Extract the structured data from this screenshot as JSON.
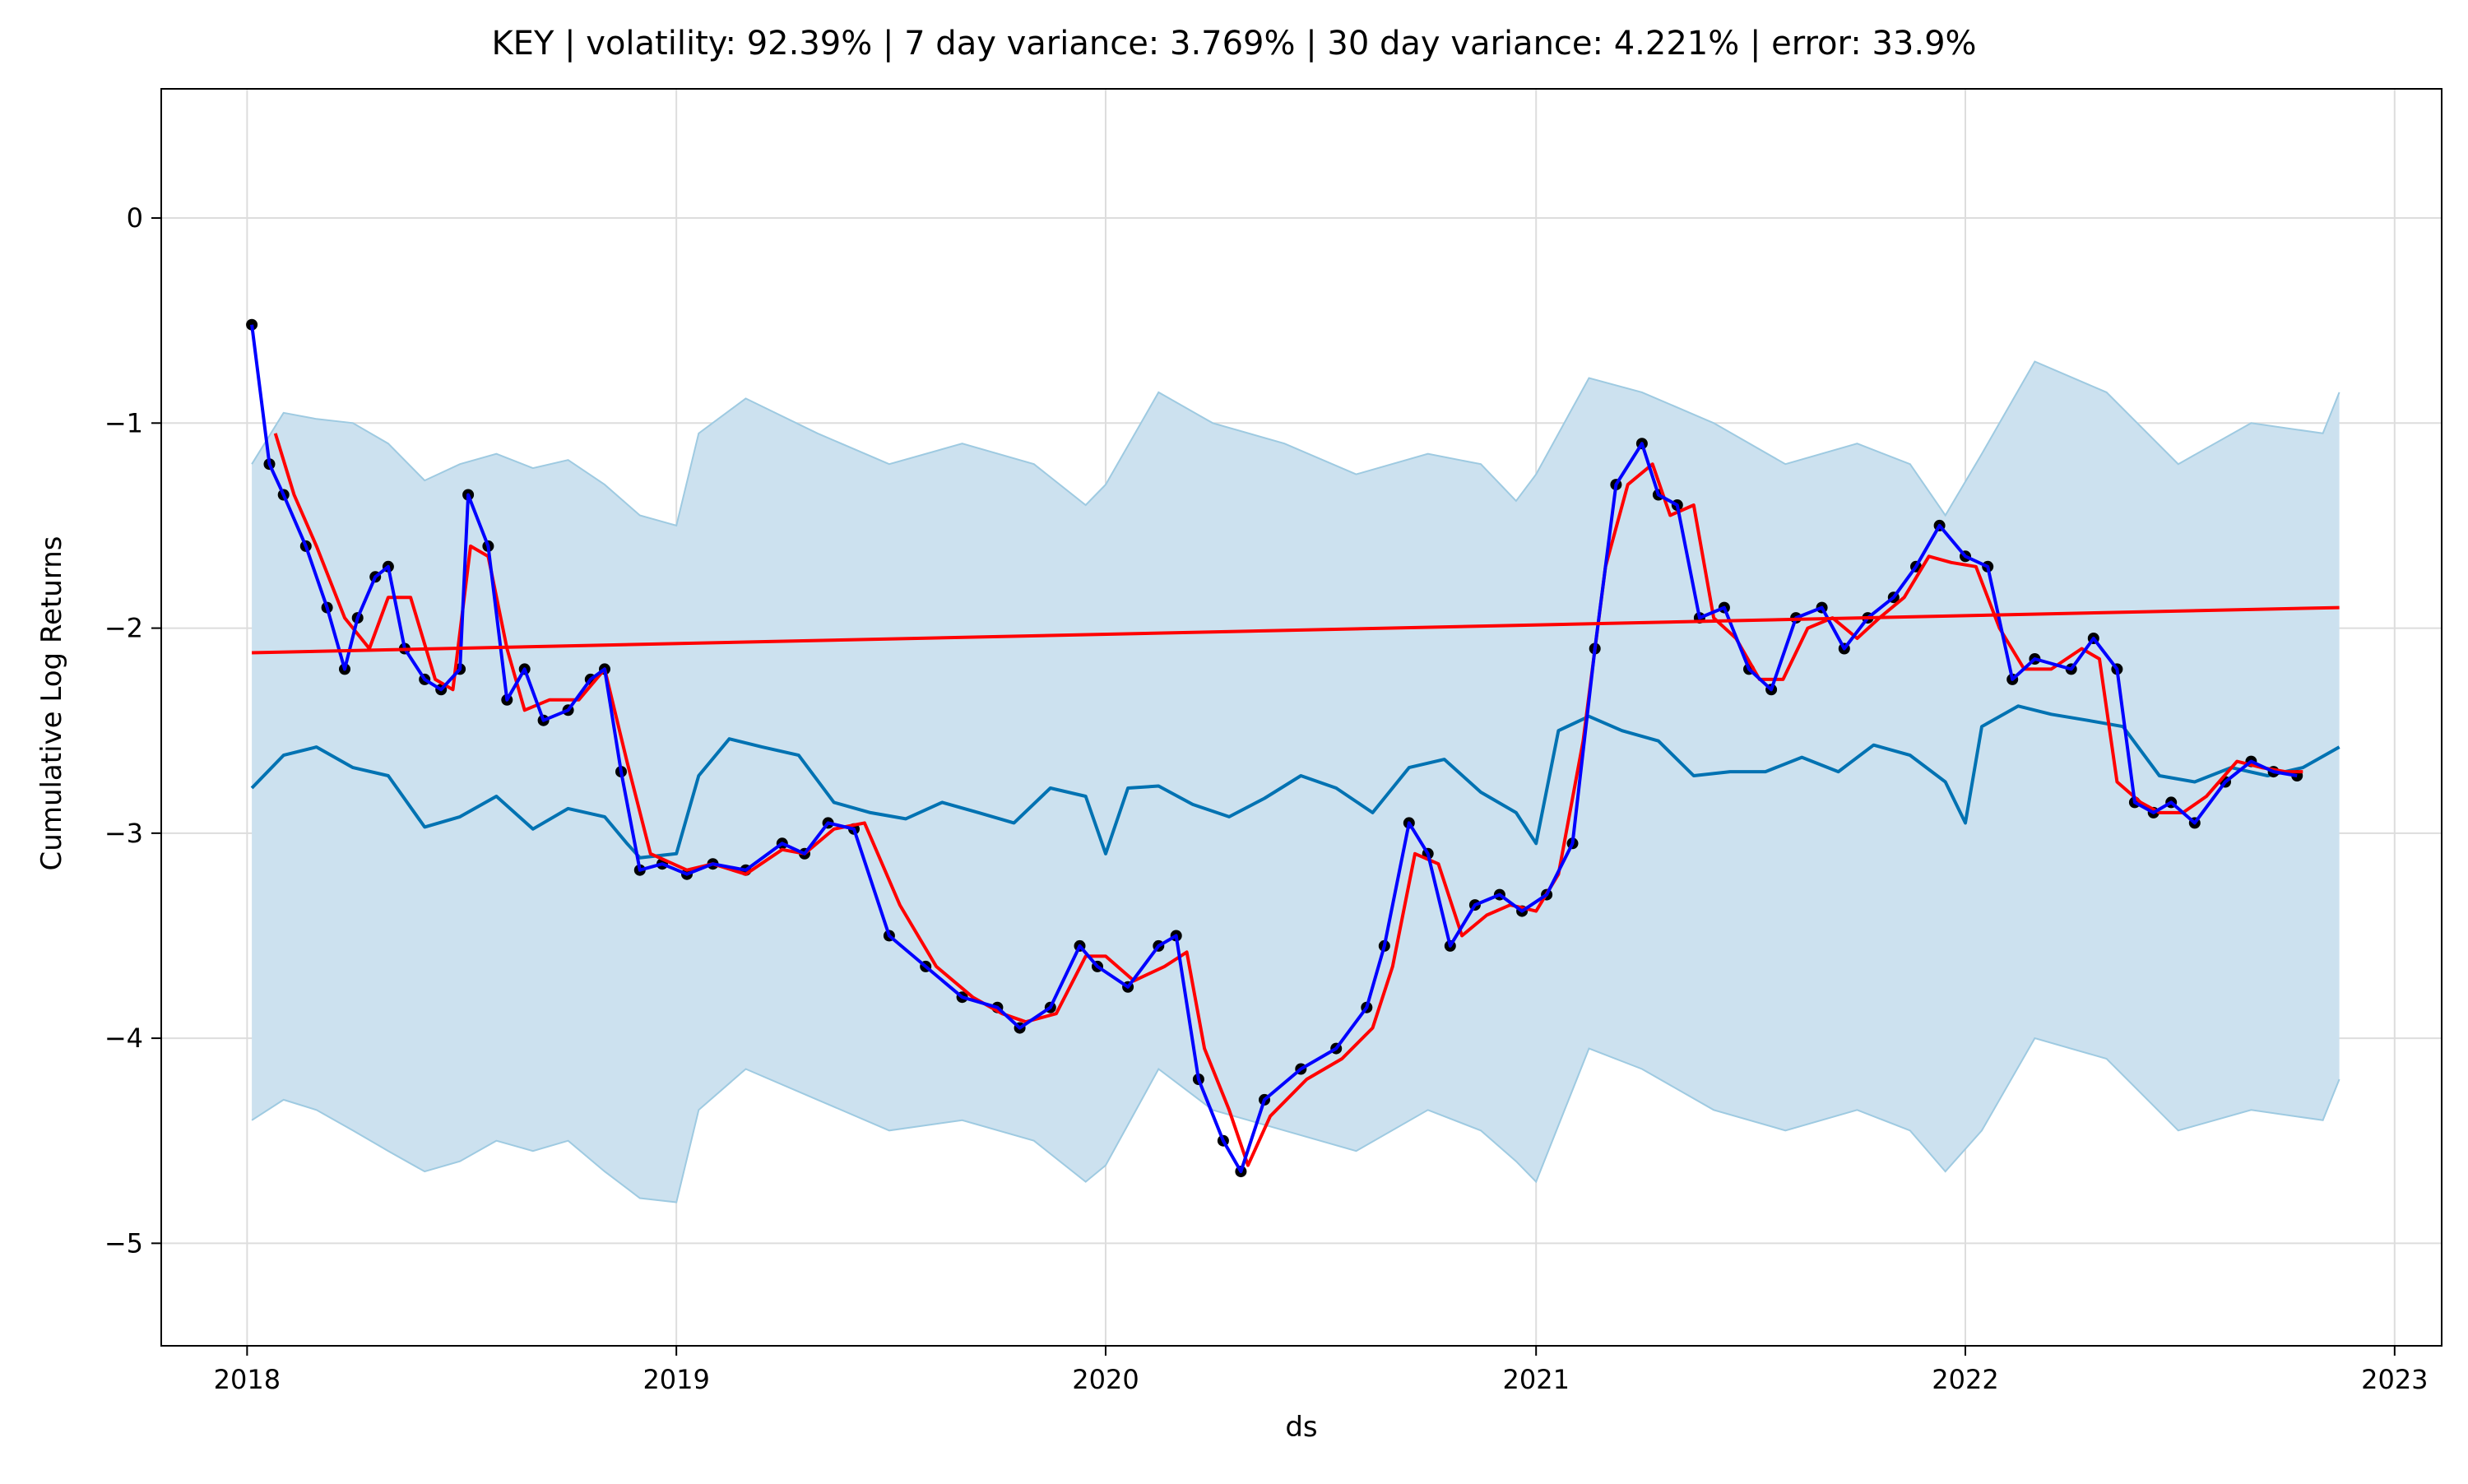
{
  "chart_data": {
    "type": "line",
    "title": "KEY | volatility: 92.39% | 7 day variance: 3.769% | 30 day variance: 4.221% | error: 33.9%",
    "xlabel": "ds",
    "ylabel": "Cumulative Log Returns",
    "xlim": [
      "2017-10-20",
      "2023-02-10"
    ],
    "ylim": [
      -5.5,
      0.63
    ],
    "xticks": [
      {
        "label": "2018",
        "date": "2018-01-01"
      },
      {
        "label": "2019",
        "date": "2019-01-01"
      },
      {
        "label": "2020",
        "date": "2020-01-01"
      },
      {
        "label": "2021",
        "date": "2021-01-01"
      },
      {
        "label": "2022",
        "date": "2022-01-01"
      },
      {
        "label": "2023",
        "date": "2023-01-01"
      }
    ],
    "yticks": [
      {
        "label": "0",
        "value": 0
      },
      {
        "label": "−1",
        "value": -1
      },
      {
        "label": "−2",
        "value": -2
      },
      {
        "label": "−3",
        "value": -3
      },
      {
        "label": "−4",
        "value": -4
      },
      {
        "label": "−5",
        "value": -5
      }
    ],
    "grid": true,
    "colors": {
      "observed": "#000000",
      "rolling_7": "#0000ff",
      "rolling_30": "#ff0000",
      "trend": "#ff0000",
      "forecast": "#0072b2",
      "band_fill": "#cce1ef",
      "band_edge": "#9ecae1",
      "grid": "#dddddd"
    },
    "series": [
      {
        "role": "forecast",
        "x": [
          "2018-01-05",
          "2018-02-01",
          "2018-03-01",
          "2018-04-01",
          "2018-05-01",
          "2018-06-01",
          "2018-07-01",
          "2018-08-01",
          "2018-09-01",
          "2018-10-01",
          "2018-11-01",
          "2018-11-20",
          "2018-12-01",
          "2019-01-01",
          "2019-01-20",
          "2019-02-15",
          "2019-03-15",
          "2019-04-15",
          "2019-05-15",
          "2019-06-15",
          "2019-07-15",
          "2019-08-15",
          "2019-09-15",
          "2019-10-15",
          "2019-11-15",
          "2019-12-15",
          "2020-01-01",
          "2020-01-20",
          "2020-02-15",
          "2020-03-15",
          "2020-04-15",
          "2020-05-15",
          "2020-06-15",
          "2020-07-15",
          "2020-08-15",
          "2020-09-15",
          "2020-10-15",
          "2020-11-15",
          "2020-12-15",
          "2021-01-01",
          "2021-01-20",
          "2021-02-15",
          "2021-03-15",
          "2021-04-15",
          "2021-05-15",
          "2021-06-15",
          "2021-07-15",
          "2021-08-15",
          "2021-09-15",
          "2021-10-15",
          "2021-11-15",
          "2021-12-15",
          "2022-01-01",
          "2022-01-15",
          "2022-02-15",
          "2022-03-15",
          "2022-04-15",
          "2022-05-15",
          "2022-06-15",
          "2022-07-15",
          "2022-08-15",
          "2022-09-15",
          "2022-10-15",
          "2022-11-15"
        ],
        "y": [
          -2.78,
          -2.62,
          -2.58,
          -2.68,
          -2.72,
          -2.97,
          -2.92,
          -2.82,
          -2.98,
          -2.88,
          -2.92,
          -3.05,
          -3.12,
          -3.1,
          -2.72,
          -2.54,
          -2.58,
          -2.62,
          -2.85,
          -2.9,
          -2.93,
          -2.85,
          -2.9,
          -2.95,
          -2.78,
          -2.82,
          -3.1,
          -2.78,
          -2.77,
          -2.86,
          -2.92,
          -2.83,
          -2.72,
          -2.78,
          -2.9,
          -2.68,
          -2.64,
          -2.8,
          -2.9,
          -3.05,
          -2.5,
          -2.43,
          -2.5,
          -2.55,
          -2.72,
          -2.7,
          -2.7,
          -2.63,
          -2.7,
          -2.57,
          -2.62,
          -2.75,
          -2.95,
          -2.48,
          -2.38,
          -2.42,
          -2.45,
          -2.48,
          -2.72,
          -2.75,
          -2.68,
          -2.72,
          -2.68,
          -2.58
        ]
      },
      {
        "role": "band_upper",
        "x": [
          "2018-01-05",
          "2018-02-01",
          "2018-03-01",
          "2018-04-01",
          "2018-05-01",
          "2018-06-01",
          "2018-07-01",
          "2018-08-01",
          "2018-09-01",
          "2018-10-01",
          "2018-11-01",
          "2018-12-01",
          "2019-01-01",
          "2019-01-20",
          "2019-03-01",
          "2019-05-01",
          "2019-07-01",
          "2019-09-01",
          "2019-11-01",
          "2019-12-15",
          "2020-01-01",
          "2020-02-15",
          "2020-04-01",
          "2020-06-01",
          "2020-08-01",
          "2020-10-01",
          "2020-11-15",
          "2020-12-15",
          "2021-01-01",
          "2021-02-15",
          "2021-04-01",
          "2021-06-01",
          "2021-08-01",
          "2021-10-01",
          "2021-11-15",
          "2021-12-15",
          "2022-01-15",
          "2022-03-01",
          "2022-05-01",
          "2022-07-01",
          "2022-09-01",
          "2022-11-01",
          "2022-11-15"
        ],
        "y": [
          -1.2,
          -0.95,
          -0.98,
          -1.0,
          -1.1,
          -1.28,
          -1.2,
          -1.15,
          -1.22,
          -1.18,
          -1.3,
          -1.45,
          -1.5,
          -1.05,
          -0.88,
          -1.05,
          -1.2,
          -1.1,
          -1.2,
          -1.4,
          -1.3,
          -0.85,
          -1.0,
          -1.1,
          -1.25,
          -1.15,
          -1.2,
          -1.38,
          -1.25,
          -0.78,
          -0.85,
          -1.0,
          -1.2,
          -1.1,
          -1.2,
          -1.45,
          -1.15,
          -0.7,
          -0.85,
          -1.2,
          -1.0,
          -1.05,
          -0.85
        ]
      },
      {
        "role": "band_lower",
        "x": [
          "2018-01-05",
          "2018-02-01",
          "2018-03-01",
          "2018-04-01",
          "2018-05-01",
          "2018-06-01",
          "2018-07-01",
          "2018-08-01",
          "2018-09-01",
          "2018-10-01",
          "2018-11-01",
          "2018-12-01",
          "2019-01-01",
          "2019-01-20",
          "2019-03-01",
          "2019-05-01",
          "2019-07-01",
          "2019-09-01",
          "2019-11-01",
          "2019-12-15",
          "2020-01-01",
          "2020-02-15",
          "2020-04-01",
          "2020-06-01",
          "2020-08-01",
          "2020-10-01",
          "2020-11-15",
          "2020-12-15",
          "2021-01-01",
          "2021-02-15",
          "2021-04-01",
          "2021-06-01",
          "2021-08-01",
          "2021-10-01",
          "2021-11-15",
          "2021-12-15",
          "2022-01-15",
          "2022-03-01",
          "2022-05-01",
          "2022-07-01",
          "2022-09-01",
          "2022-11-01",
          "2022-11-15"
        ],
        "y": [
          -4.4,
          -4.3,
          -4.35,
          -4.45,
          -4.55,
          -4.65,
          -4.6,
          -4.5,
          -4.55,
          -4.5,
          -4.65,
          -4.78,
          -4.8,
          -4.35,
          -4.15,
          -4.3,
          -4.45,
          -4.4,
          -4.5,
          -4.7,
          -4.62,
          -4.15,
          -4.35,
          -4.45,
          -4.55,
          -4.35,
          -4.45,
          -4.6,
          -4.7,
          -4.05,
          -4.15,
          -4.35,
          -4.45,
          -4.35,
          -4.45,
          -4.65,
          -4.45,
          -4.0,
          -4.1,
          -4.45,
          -4.35,
          -4.4,
          -4.2
        ]
      },
      {
        "role": "trend",
        "x": [
          "2018-01-05",
          "2022-11-15"
        ],
        "y": [
          -2.12,
          -1.9
        ]
      },
      {
        "role": "rolling_7",
        "x": [
          "2018-01-05",
          "2018-01-20",
          "2018-02-01",
          "2018-02-20",
          "2018-03-10",
          "2018-03-25",
          "2018-04-05",
          "2018-04-20",
          "2018-05-01",
          "2018-05-15",
          "2018-06-01",
          "2018-06-15",
          "2018-07-01",
          "2018-07-08",
          "2018-07-25",
          "2018-08-10",
          "2018-08-25",
          "2018-09-10",
          "2018-10-01",
          "2018-10-20",
          "2018-11-01",
          "2018-11-15",
          "2018-12-01",
          "2018-12-20",
          "2019-01-10",
          "2019-02-01",
          "2019-03-01",
          "2019-04-01",
          "2019-04-20",
          "2019-05-10",
          "2019-06-01",
          "2019-07-01",
          "2019-08-01",
          "2019-09-01",
          "2019-10-01",
          "2019-10-20",
          "2019-11-15",
          "2019-12-10",
          "2019-12-25",
          "2020-01-20",
          "2020-02-15",
          "2020-03-01",
          "2020-03-20",
          "2020-04-10",
          "2020-04-25",
          "2020-05-15",
          "2020-06-15",
          "2020-07-15",
          "2020-08-10",
          "2020-08-25",
          "2020-09-15",
          "2020-10-01",
          "2020-10-20",
          "2020-11-10",
          "2020-12-01",
          "2020-12-20",
          "2021-01-10",
          "2021-02-01",
          "2021-02-20",
          "2021-03-10",
          "2021-04-01",
          "2021-04-15",
          "2021-05-01",
          "2021-05-20",
          "2021-06-10",
          "2021-07-01",
          "2021-07-20",
          "2021-08-10",
          "2021-09-01",
          "2021-09-20",
          "2021-10-10",
          "2021-11-01",
          "2021-11-20",
          "2021-12-10",
          "2022-01-01",
          "2022-01-20",
          "2022-02-10",
          "2022-03-01",
          "2022-04-01",
          "2022-04-20",
          "2022-05-10",
          "2022-05-25",
          "2022-06-10",
          "2022-06-25",
          "2022-07-15",
          "2022-08-10",
          "2022-09-01",
          "2022-09-20",
          "2022-10-10"
        ],
        "y": [
          -0.52,
          -1.2,
          -1.35,
          -1.6,
          -1.9,
          -2.2,
          -1.95,
          -1.75,
          -1.7,
          -2.1,
          -2.25,
          -2.3,
          -2.2,
          -1.35,
          -1.6,
          -2.35,
          -2.2,
          -2.45,
          -2.4,
          -2.25,
          -2.2,
          -2.7,
          -3.18,
          -3.15,
          -3.2,
          -3.15,
          -3.18,
          -3.05,
          -3.1,
          -2.95,
          -2.98,
          -3.5,
          -3.65,
          -3.8,
          -3.85,
          -3.95,
          -3.85,
          -3.55,
          -3.65,
          -3.75,
          -3.55,
          -3.5,
          -4.2,
          -4.5,
          -4.65,
          -4.3,
          -4.15,
          -4.05,
          -3.85,
          -3.55,
          -2.95,
          -3.1,
          -3.55,
          -3.35,
          -3.3,
          -3.38,
          -3.3,
          -3.05,
          -2.1,
          -1.3,
          -1.1,
          -1.35,
          -1.4,
          -1.95,
          -1.9,
          -2.2,
          -2.3,
          -1.95,
          -1.9,
          -2.1,
          -1.95,
          -1.85,
          -1.7,
          -1.5,
          -1.65,
          -1.7,
          -2.25,
          -2.15,
          -2.2,
          -2.05,
          -2.2,
          -2.85,
          -2.9,
          -2.85,
          -2.95,
          -2.75,
          -2.65,
          -2.7,
          -2.72
        ]
      },
      {
        "role": "rolling_30",
        "x": [
          "2018-01-25",
          "2018-02-10",
          "2018-03-01",
          "2018-03-25",
          "2018-04-15",
          "2018-05-01",
          "2018-05-20",
          "2018-06-10",
          "2018-06-25",
          "2018-07-10",
          "2018-07-25",
          "2018-08-10",
          "2018-08-25",
          "2018-09-15",
          "2018-10-10",
          "2018-11-01",
          "2018-11-20",
          "2018-12-10",
          "2019-01-10",
          "2019-02-01",
          "2019-03-01",
          "2019-04-01",
          "2019-04-20",
          "2019-05-15",
          "2019-06-10",
          "2019-07-10",
          "2019-08-10",
          "2019-09-10",
          "2019-10-05",
          "2019-10-25",
          "2019-11-20",
          "2019-12-15",
          "2020-01-01",
          "2020-01-25",
          "2020-02-20",
          "2020-03-10",
          "2020-03-25",
          "2020-04-15",
          "2020-05-01",
          "2020-05-20",
          "2020-06-20",
          "2020-07-20",
          "2020-08-15",
          "2020-09-01",
          "2020-09-20",
          "2020-10-10",
          "2020-10-30",
          "2020-11-20",
          "2020-12-10",
          "2021-01-01",
          "2021-01-20",
          "2021-02-10",
          "2021-03-01",
          "2021-03-20",
          "2021-04-10",
          "2021-04-25",
          "2021-05-15",
          "2021-06-01",
          "2021-06-20",
          "2021-07-10",
          "2021-07-30",
          "2021-08-20",
          "2021-09-10",
          "2021-10-01",
          "2021-10-20",
          "2021-11-10",
          "2021-12-01",
          "2021-12-20",
          "2022-01-10",
          "2022-01-30",
          "2022-02-20",
          "2022-03-15",
          "2022-04-10",
          "2022-04-25",
          "2022-05-10",
          "2022-05-30",
          "2022-06-15",
          "2022-07-05",
          "2022-07-25",
          "2022-08-20",
          "2022-09-10",
          "2022-09-30",
          "2022-10-15"
        ],
        "y": [
          -1.05,
          -1.35,
          -1.6,
          -1.95,
          -2.1,
          -1.85,
          -1.85,
          -2.25,
          -2.3,
          -1.6,
          -1.65,
          -2.1,
          -2.4,
          -2.35,
          -2.35,
          -2.2,
          -2.65,
          -3.1,
          -3.18,
          -3.15,
          -3.2,
          -3.08,
          -3.1,
          -2.98,
          -2.95,
          -3.35,
          -3.65,
          -3.8,
          -3.88,
          -3.92,
          -3.88,
          -3.6,
          -3.6,
          -3.72,
          -3.65,
          -3.58,
          -4.05,
          -4.35,
          -4.62,
          -4.38,
          -4.2,
          -4.1,
          -3.95,
          -3.65,
          -3.1,
          -3.15,
          -3.5,
          -3.4,
          -3.35,
          -3.38,
          -3.2,
          -2.55,
          -1.7,
          -1.3,
          -1.2,
          -1.45,
          -1.4,
          -1.95,
          -2.05,
          -2.25,
          -2.25,
          -2.0,
          -1.95,
          -2.05,
          -1.95,
          -1.85,
          -1.65,
          -1.68,
          -1.7,
          -2.0,
          -2.2,
          -2.2,
          -2.1,
          -2.15,
          -2.75,
          -2.85,
          -2.9,
          -2.9,
          -2.82,
          -2.65,
          -2.68,
          -2.7,
          -2.7
        ]
      }
    ]
  }
}
